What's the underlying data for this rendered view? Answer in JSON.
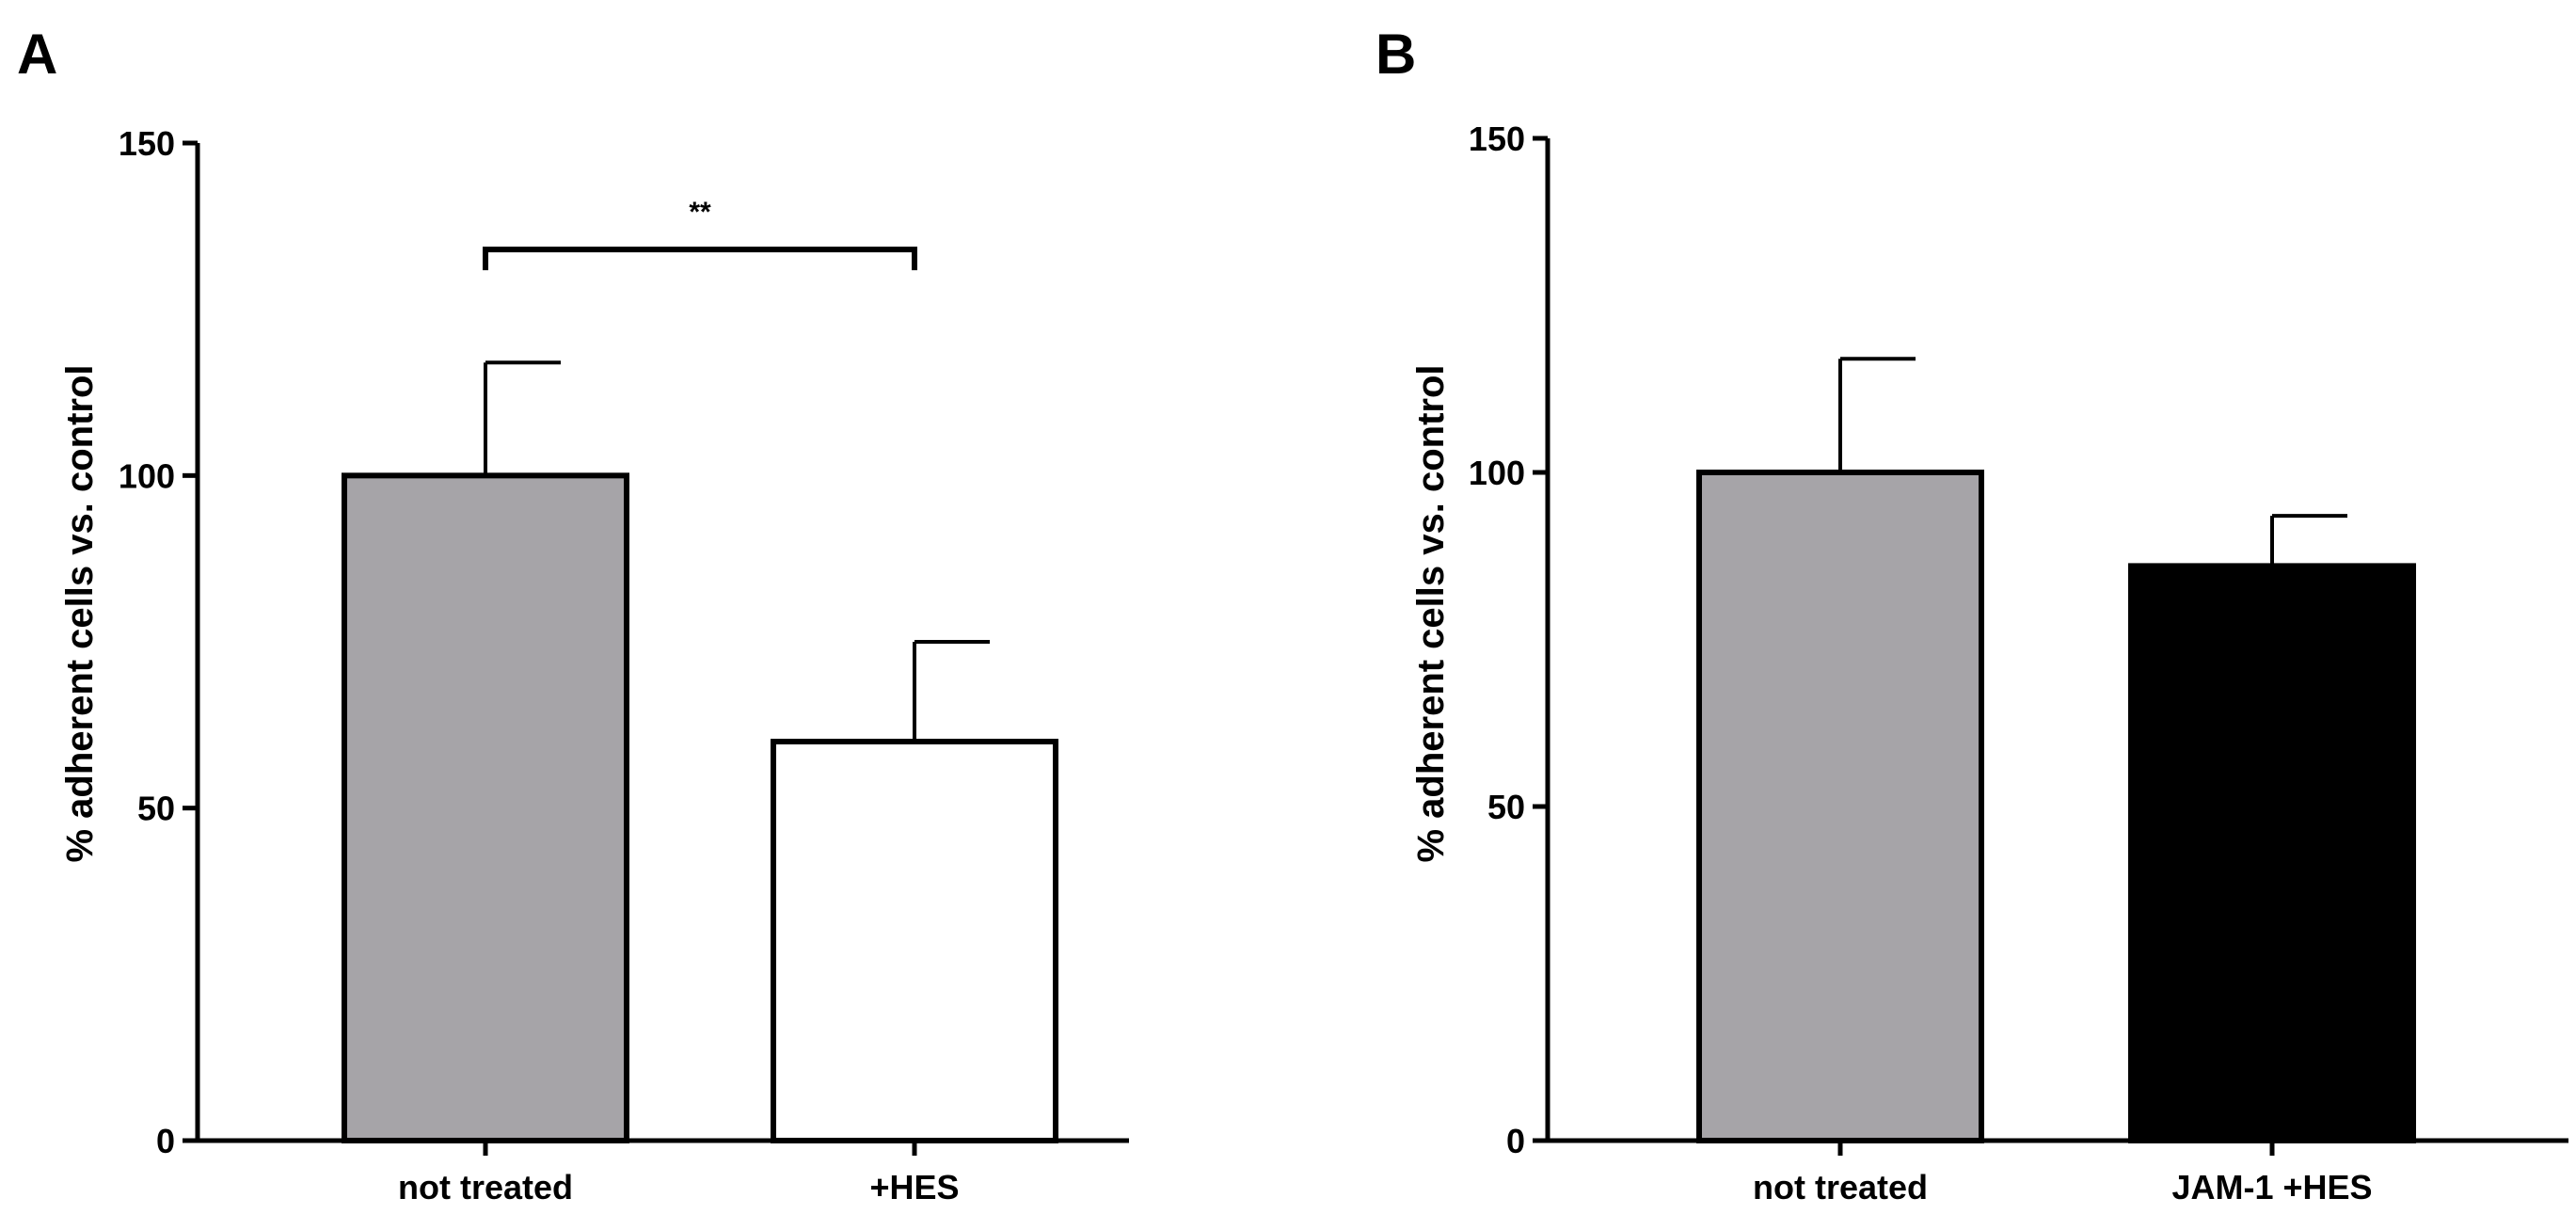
{
  "chart_data": [
    {
      "panel": "A",
      "type": "bar",
      "categories": [
        "not treated",
        "+HES"
      ],
      "values": [
        100,
        60
      ],
      "errors": [
        17,
        15
      ],
      "bar_colors": [
        "#a6a4a8",
        "#ffffff"
      ],
      "ylabel": "% adherent cells vs. control",
      "ylim": [
        0,
        150
      ],
      "yticks": [
        0,
        50,
        100,
        150
      ],
      "significance": {
        "from": 0,
        "to": 1,
        "label": "**",
        "y": 134
      },
      "grid": false
    },
    {
      "panel": "B",
      "type": "bar",
      "categories": [
        "not treated",
        "JAM-1 +HES"
      ],
      "values": [
        100,
        86
      ],
      "errors": [
        17,
        7.5
      ],
      "bar_colors": [
        "#a6a4a8",
        "#000000"
      ],
      "ylabel": "% adherent cells vs. control",
      "ylim": [
        0,
        150
      ],
      "yticks": [
        0,
        50,
        100,
        150
      ],
      "grid": false
    }
  ]
}
